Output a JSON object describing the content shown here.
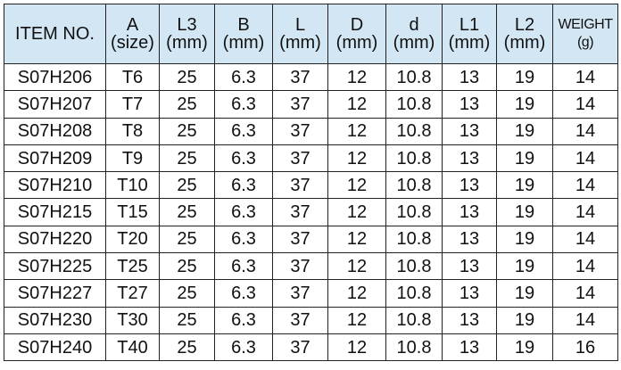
{
  "table": {
    "header": [
      [
        "ITEM NO."
      ],
      [
        "A",
        "(size)"
      ],
      [
        "L3",
        "(mm)"
      ],
      [
        "B",
        "(mm)"
      ],
      [
        "L",
        "(mm)"
      ],
      [
        "D",
        "(mm)"
      ],
      [
        "d",
        "(mm)"
      ],
      [
        "L1",
        "(mm)"
      ],
      [
        "L2",
        "(mm)"
      ],
      [
        "WEIGHT",
        "(g)"
      ]
    ],
    "rows": [
      [
        "S07H206",
        "T6",
        25,
        6.3,
        37,
        12,
        10.8,
        13,
        19,
        14
      ],
      [
        "S07H207",
        "T7",
        25,
        6.3,
        37,
        12,
        10.8,
        13,
        19,
        14
      ],
      [
        "S07H208",
        "T8",
        25,
        6.3,
        37,
        12,
        10.8,
        13,
        19,
        14
      ],
      [
        "S07H209",
        "T9",
        25,
        6.3,
        37,
        12,
        10.8,
        13,
        19,
        14
      ],
      [
        "S07H210",
        "T10",
        25,
        6.3,
        37,
        12,
        10.8,
        13,
        19,
        14
      ],
      [
        "S07H215",
        "T15",
        25,
        6.3,
        37,
        12,
        10.8,
        13,
        19,
        14
      ],
      [
        "S07H220",
        "T20",
        25,
        6.3,
        37,
        12,
        10.8,
        13,
        19,
        14
      ],
      [
        "S07H225",
        "T25",
        25,
        6.3,
        37,
        12,
        10.8,
        13,
        19,
        14
      ],
      [
        "S07H227",
        "T27",
        25,
        6.3,
        37,
        12,
        10.8,
        13,
        19,
        14
      ],
      [
        "S07H230",
        "T30",
        25,
        6.3,
        37,
        12,
        10.8,
        13,
        19,
        14
      ],
      [
        "S07H240",
        "T40",
        25,
        6.3,
        37,
        12,
        10.8,
        13,
        19,
        16
      ]
    ]
  }
}
